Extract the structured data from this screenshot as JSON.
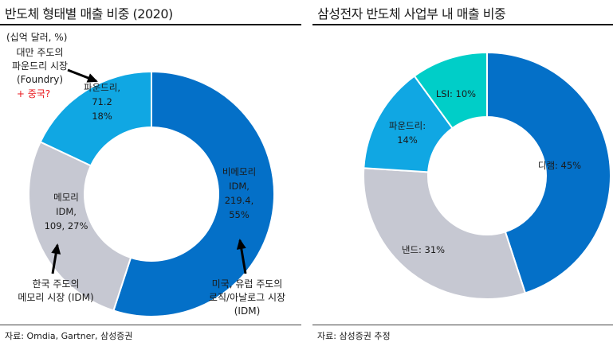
{
  "left": {
    "title": "반도체 형태별 매출 비중 (2020)",
    "unit": "(십억 달러, %)",
    "source": "자료: Omdia, Gartner, 삼성증권",
    "annotations": {
      "foundry": [
        "대만 주도의",
        "파운드리 시장",
        "(Foundry)"
      ],
      "china": "+ 중국?",
      "memory": [
        "한국 주도의",
        "메모리 시장 (IDM)"
      ],
      "logic": [
        "미국, 유럽 주도의",
        "로직/아날로그 시장",
        "(IDM)"
      ]
    }
  },
  "right": {
    "title": "삼성전자 반도체 사업부 내 매출 비중",
    "source": "자료: 삼성증권 추정"
  },
  "colors": {
    "dark_blue": "#0470c8",
    "light_blue": "#10a7e3",
    "gray": "#c6c8d2",
    "teal": "#00cec8",
    "red": "#e8171c"
  },
  "chart_data": [
    {
      "type": "pie",
      "title": "반도체 형태별 매출 비중 (2020)",
      "unit": "(십억 달러, %)",
      "slices": [
        {
          "name": "비메모리 IDM",
          "value": 219.4,
          "percent": 55,
          "label": [
            "비메모리",
            "IDM,",
            "219.4,",
            "55%"
          ],
          "color": "#0470c8"
        },
        {
          "name": "메모리 IDM",
          "value": 109,
          "percent": 27,
          "label": [
            "메모리",
            "IDM,",
            "109, 27%"
          ],
          "color": "#c6c8d2"
        },
        {
          "name": "파운드리",
          "value": 71.2,
          "percent": 18,
          "label": [
            "파운드리,",
            "71.2",
            "18%"
          ],
          "color": "#10a7e3"
        }
      ]
    },
    {
      "type": "pie",
      "title": "삼성전자 반도체 사업부 내 매출 비중",
      "slices": [
        {
          "name": "디램",
          "percent": 45,
          "label": [
            "디램: 45%"
          ],
          "color": "#0470c8"
        },
        {
          "name": "낸드",
          "percent": 31,
          "label": [
            "낸드: 31%"
          ],
          "color": "#c6c8d2"
        },
        {
          "name": "파운드리",
          "percent": 14,
          "label": [
            "파운드리:",
            "14%"
          ],
          "color": "#10a7e3"
        },
        {
          "name": "LSI",
          "percent": 10,
          "label": [
            "LSI: 10%"
          ],
          "color": "#00cec8"
        }
      ]
    }
  ]
}
